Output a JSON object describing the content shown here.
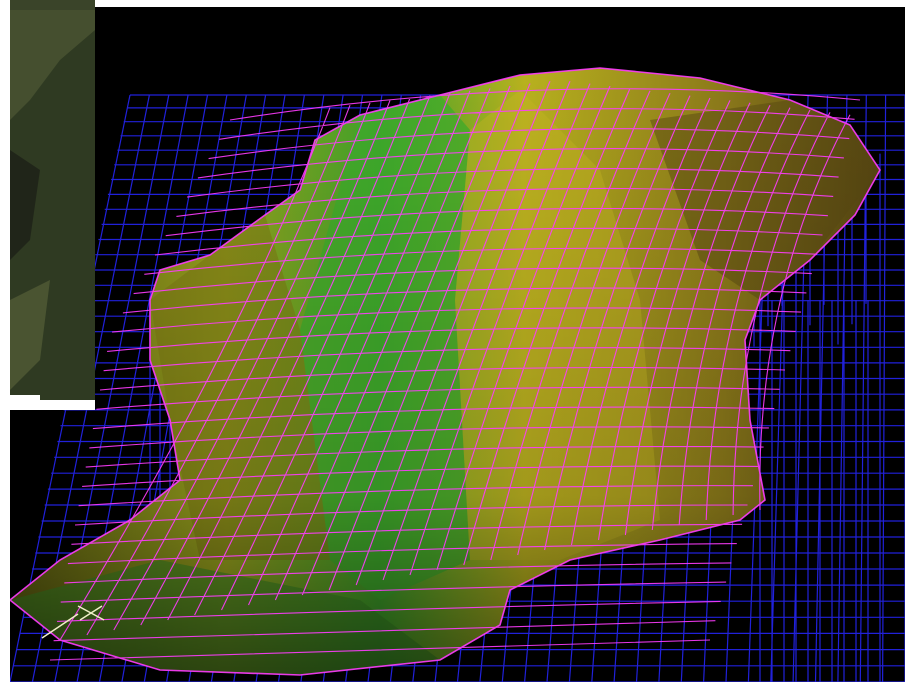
{
  "scene": {
    "background_color": "#000000",
    "frame_color": "#ffffff",
    "wireframe_base_color": "#2323e6",
    "wireframe_surface_color": "#ff3cff",
    "terrain_colors": [
      "#2f9e2a",
      "#8cb81e",
      "#b9b21e",
      "#5a5a10"
    ],
    "cursor_color": "#f0f0c8",
    "inset_colors": [
      "#2f3a22",
      "#4b5533",
      "#1f2418"
    ],
    "icons": [
      "cursor-cross-icon"
    ]
  }
}
